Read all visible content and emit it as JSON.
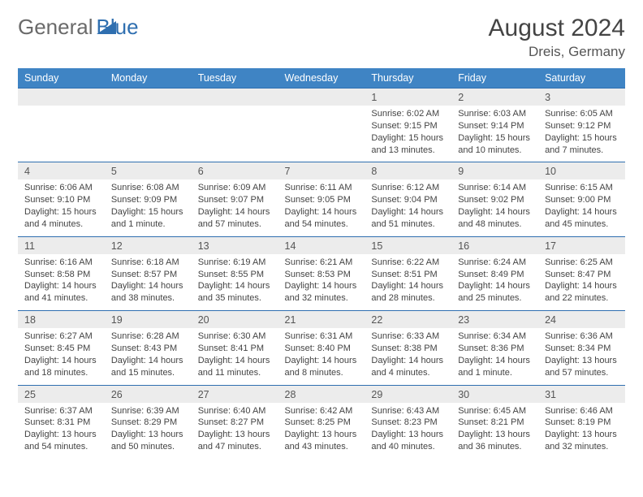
{
  "brand": {
    "part1": "General",
    "part2": "Blue"
  },
  "title": "August 2024",
  "location": "Dreis, Germany",
  "header_bg": "#3f84c4",
  "border_color": "#2f6fb0",
  "daynum_bg": "#ececec",
  "text_color": "#444",
  "logo_gray": "#6a6a6a",
  "logo_blue": "#2f6fb0",
  "weekdays": [
    "Sunday",
    "Monday",
    "Tuesday",
    "Wednesday",
    "Thursday",
    "Friday",
    "Saturday"
  ],
  "weeks": [
    [
      null,
      null,
      null,
      null,
      {
        "n": "1",
        "sunrise": "6:02 AM",
        "sunset": "9:15 PM",
        "daylight": "15 hours and 13 minutes."
      },
      {
        "n": "2",
        "sunrise": "6:03 AM",
        "sunset": "9:14 PM",
        "daylight": "15 hours and 10 minutes."
      },
      {
        "n": "3",
        "sunrise": "6:05 AM",
        "sunset": "9:12 PM",
        "daylight": "15 hours and 7 minutes."
      }
    ],
    [
      {
        "n": "4",
        "sunrise": "6:06 AM",
        "sunset": "9:10 PM",
        "daylight": "15 hours and 4 minutes."
      },
      {
        "n": "5",
        "sunrise": "6:08 AM",
        "sunset": "9:09 PM",
        "daylight": "15 hours and 1 minute."
      },
      {
        "n": "6",
        "sunrise": "6:09 AM",
        "sunset": "9:07 PM",
        "daylight": "14 hours and 57 minutes."
      },
      {
        "n": "7",
        "sunrise": "6:11 AM",
        "sunset": "9:05 PM",
        "daylight": "14 hours and 54 minutes."
      },
      {
        "n": "8",
        "sunrise": "6:12 AM",
        "sunset": "9:04 PM",
        "daylight": "14 hours and 51 minutes."
      },
      {
        "n": "9",
        "sunrise": "6:14 AM",
        "sunset": "9:02 PM",
        "daylight": "14 hours and 48 minutes."
      },
      {
        "n": "10",
        "sunrise": "6:15 AM",
        "sunset": "9:00 PM",
        "daylight": "14 hours and 45 minutes."
      }
    ],
    [
      {
        "n": "11",
        "sunrise": "6:16 AM",
        "sunset": "8:58 PM",
        "daylight": "14 hours and 41 minutes."
      },
      {
        "n": "12",
        "sunrise": "6:18 AM",
        "sunset": "8:57 PM",
        "daylight": "14 hours and 38 minutes."
      },
      {
        "n": "13",
        "sunrise": "6:19 AM",
        "sunset": "8:55 PM",
        "daylight": "14 hours and 35 minutes."
      },
      {
        "n": "14",
        "sunrise": "6:21 AM",
        "sunset": "8:53 PM",
        "daylight": "14 hours and 32 minutes."
      },
      {
        "n": "15",
        "sunrise": "6:22 AM",
        "sunset": "8:51 PM",
        "daylight": "14 hours and 28 minutes."
      },
      {
        "n": "16",
        "sunrise": "6:24 AM",
        "sunset": "8:49 PM",
        "daylight": "14 hours and 25 minutes."
      },
      {
        "n": "17",
        "sunrise": "6:25 AM",
        "sunset": "8:47 PM",
        "daylight": "14 hours and 22 minutes."
      }
    ],
    [
      {
        "n": "18",
        "sunrise": "6:27 AM",
        "sunset": "8:45 PM",
        "daylight": "14 hours and 18 minutes."
      },
      {
        "n": "19",
        "sunrise": "6:28 AM",
        "sunset": "8:43 PM",
        "daylight": "14 hours and 15 minutes."
      },
      {
        "n": "20",
        "sunrise": "6:30 AM",
        "sunset": "8:41 PM",
        "daylight": "14 hours and 11 minutes."
      },
      {
        "n": "21",
        "sunrise": "6:31 AM",
        "sunset": "8:40 PM",
        "daylight": "14 hours and 8 minutes."
      },
      {
        "n": "22",
        "sunrise": "6:33 AM",
        "sunset": "8:38 PM",
        "daylight": "14 hours and 4 minutes."
      },
      {
        "n": "23",
        "sunrise": "6:34 AM",
        "sunset": "8:36 PM",
        "daylight": "14 hours and 1 minute."
      },
      {
        "n": "24",
        "sunrise": "6:36 AM",
        "sunset": "8:34 PM",
        "daylight": "13 hours and 57 minutes."
      }
    ],
    [
      {
        "n": "25",
        "sunrise": "6:37 AM",
        "sunset": "8:31 PM",
        "daylight": "13 hours and 54 minutes."
      },
      {
        "n": "26",
        "sunrise": "6:39 AM",
        "sunset": "8:29 PM",
        "daylight": "13 hours and 50 minutes."
      },
      {
        "n": "27",
        "sunrise": "6:40 AM",
        "sunset": "8:27 PM",
        "daylight": "13 hours and 47 minutes."
      },
      {
        "n": "28",
        "sunrise": "6:42 AM",
        "sunset": "8:25 PM",
        "daylight": "13 hours and 43 minutes."
      },
      {
        "n": "29",
        "sunrise": "6:43 AM",
        "sunset": "8:23 PM",
        "daylight": "13 hours and 40 minutes."
      },
      {
        "n": "30",
        "sunrise": "6:45 AM",
        "sunset": "8:21 PM",
        "daylight": "13 hours and 36 minutes."
      },
      {
        "n": "31",
        "sunrise": "6:46 AM",
        "sunset": "8:19 PM",
        "daylight": "13 hours and 32 minutes."
      }
    ]
  ]
}
